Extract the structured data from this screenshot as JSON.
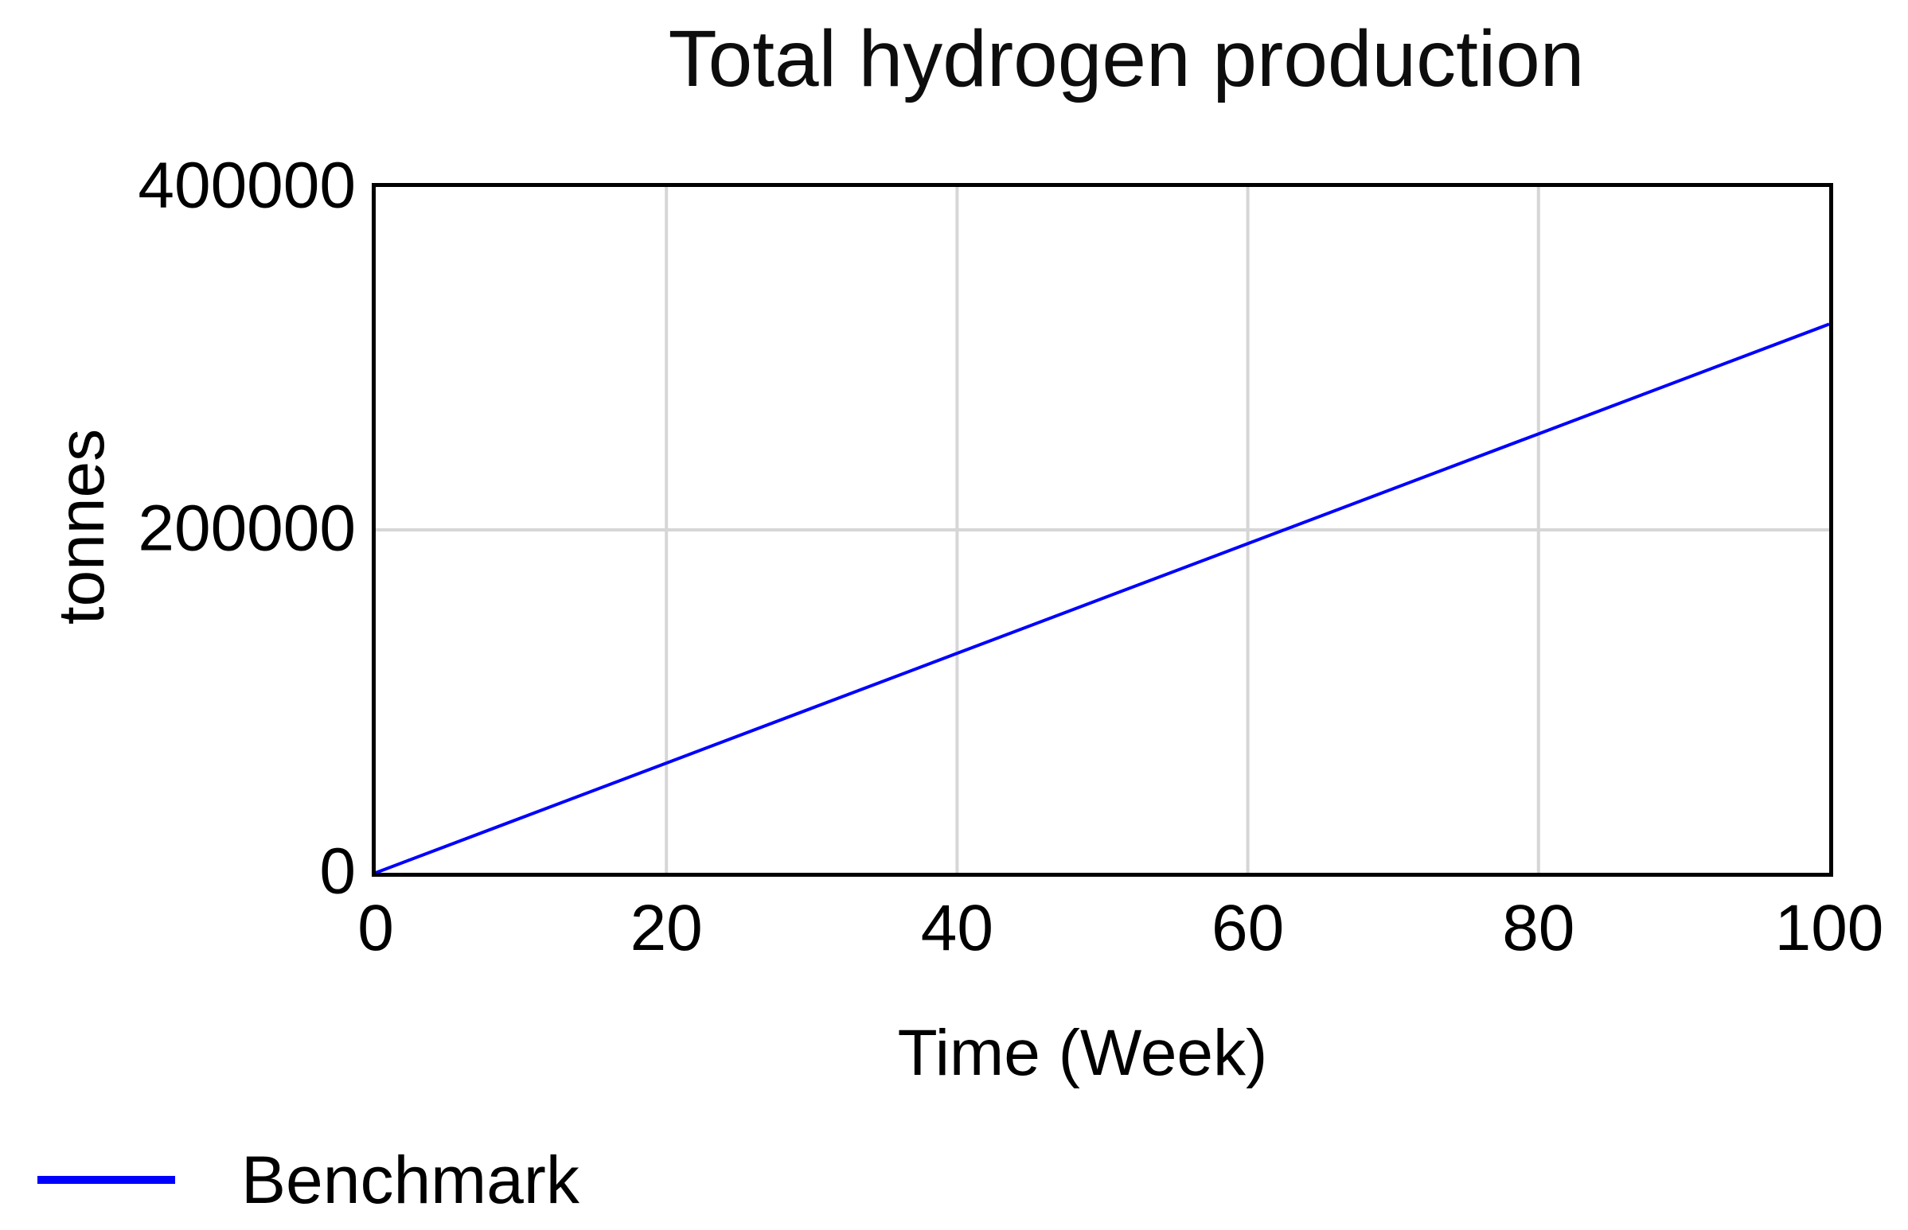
{
  "chart_data": {
    "type": "line",
    "title": "Total hydrogen production",
    "xlabel": "Time (Week)",
    "ylabel": "tonnes",
    "xlim": [
      0,
      100
    ],
    "ylim": [
      0,
      400000
    ],
    "x_ticks": [
      0,
      20,
      40,
      60,
      80,
      100
    ],
    "y_ticks": [
      0,
      200000,
      400000
    ],
    "grid": true,
    "legend_position": "bottom-left",
    "series": [
      {
        "name": "Benchmark",
        "color": "#0000ff",
        "x": [
          0,
          20,
          40,
          60,
          80,
          100
        ],
        "y": [
          0,
          64000,
          128000,
          192000,
          256000,
          320000
        ]
      }
    ],
    "colors": {
      "line": "#0000ff",
      "grid": "#d6d6d6",
      "frame": "#000000",
      "text": "#000000"
    }
  }
}
